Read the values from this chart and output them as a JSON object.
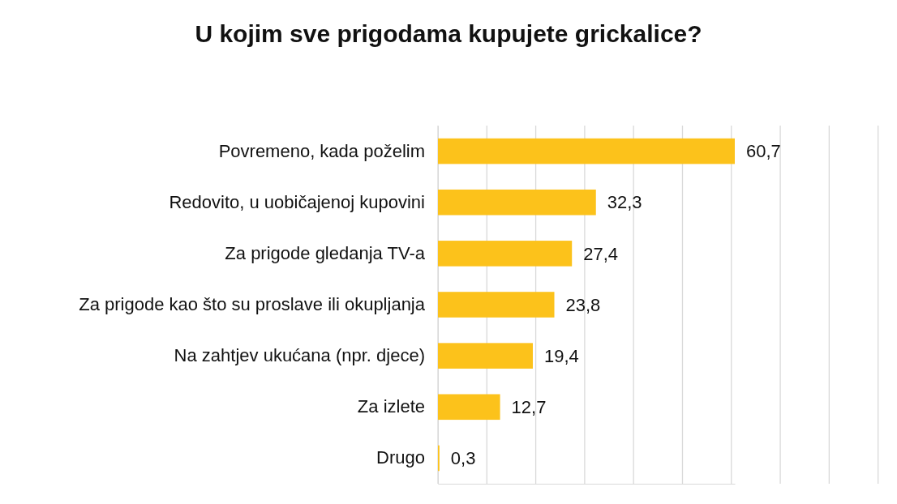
{
  "chart_data": {
    "type": "bar",
    "orientation": "horizontal",
    "title": "U kojim sve prigodama kupujete grickalice?",
    "categories": [
      "Povremeno, kada poželim",
      "Redovito, u uobičajenoj kupovini",
      "Za prigode gledanja TV-a",
      "Za prigode kao što su proslave ili okupljanja",
      "Na zahtjev ukućana (npr. djece)",
      "Za izlete",
      "Drugo"
    ],
    "values": [
      60.7,
      32.3,
      27.4,
      23.8,
      19.4,
      12.7,
      0.3
    ],
    "color": "#fcc21b",
    "value_labels": [
      "60,7",
      "32,3",
      "27,4",
      "23,8",
      "19,4",
      "12,7",
      "0,3"
    ],
    "grid": "x",
    "tick_labels": "y"
  }
}
